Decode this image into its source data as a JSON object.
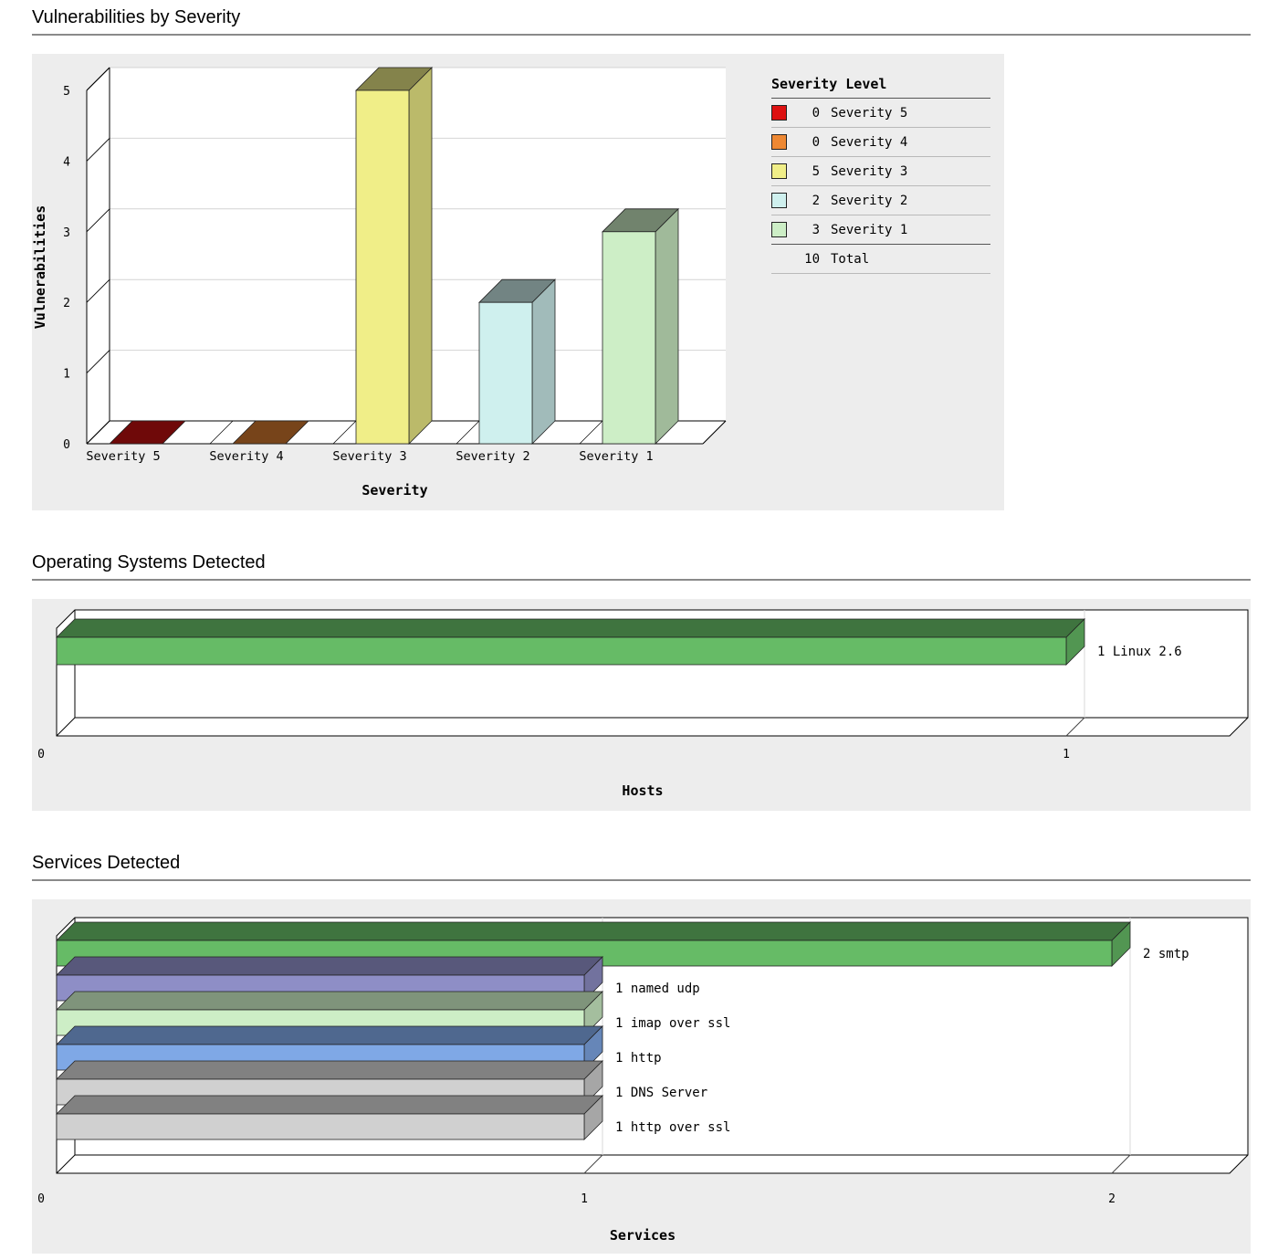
{
  "page": {
    "background": "#ffffff",
    "panel_background": "#ededed"
  },
  "sections": [
    {
      "title": "Vulnerabilities by Severity"
    },
    {
      "title": "Operating Systems Detected"
    },
    {
      "title": "Services Detected"
    }
  ],
  "chart_data": [
    {
      "type": "bar",
      "style": "3d-vertical",
      "title": "Vulnerabilities by Severity",
      "xlabel": "Severity",
      "ylabel": "Vulnerabilities",
      "ylim": [
        0,
        5
      ],
      "yticks": [
        0,
        1,
        2,
        3,
        4,
        5
      ],
      "categories": [
        "Severity 5",
        "Severity 4",
        "Severity 3",
        "Severity 2",
        "Severity 1"
      ],
      "values": [
        0,
        0,
        5,
        2,
        3
      ],
      "bar_colors": [
        "#dd1111",
        "#ee8833",
        "#f0ee88",
        "#cff0ee",
        "#cdeec6"
      ],
      "grid": true,
      "legend_position": "right",
      "legend": {
        "title": "Severity Level",
        "items": [
          {
            "swatch": "#dd1111",
            "count": "0",
            "label": "Severity 5"
          },
          {
            "swatch": "#ee8833",
            "count": "0",
            "label": "Severity 4"
          },
          {
            "swatch": "#f0ee88",
            "count": "5",
            "label": "Severity 3"
          },
          {
            "swatch": "#cff0ee",
            "count": "2",
            "label": "Severity 2"
          },
          {
            "swatch": "#cdeec6",
            "count": "3",
            "label": "Severity 1"
          }
        ],
        "total_count": "10",
        "total_label": "Total"
      }
    },
    {
      "type": "bar",
      "style": "3d-horizontal",
      "title": "Operating Systems Detected",
      "xlabel": "Hosts",
      "ylabel": "",
      "xlim": [
        0,
        1.16
      ],
      "xticks": [
        0,
        1
      ],
      "categories": [
        "Linux 2.6"
      ],
      "values": [
        1
      ],
      "bar_labels": [
        "1 Linux 2.6"
      ],
      "bar_colors": [
        "#66bb66"
      ],
      "grid": true
    },
    {
      "type": "bar",
      "style": "3d-horizontal",
      "title": "Services Detected",
      "xlabel": "Services",
      "ylabel": "",
      "xlim": [
        0,
        2.17
      ],
      "xticks": [
        0,
        1,
        2
      ],
      "categories": [
        "smtp",
        "named udp",
        "imap over ssl",
        "http",
        "DNS Server",
        "http over ssl"
      ],
      "values": [
        2,
        1,
        1,
        1,
        1,
        1
      ],
      "bar_labels": [
        "2 smtp",
        "1 named udp",
        "1 imap over ssl",
        "1 http",
        "1 DNS Server",
        "1 http over ssl"
      ],
      "bar_colors": [
        "#66bb66",
        "#8e8ec6",
        "#cdeec6",
        "#7fa8e6",
        "#d0d0d0",
        "#d0d0d0"
      ],
      "grid": true
    }
  ]
}
